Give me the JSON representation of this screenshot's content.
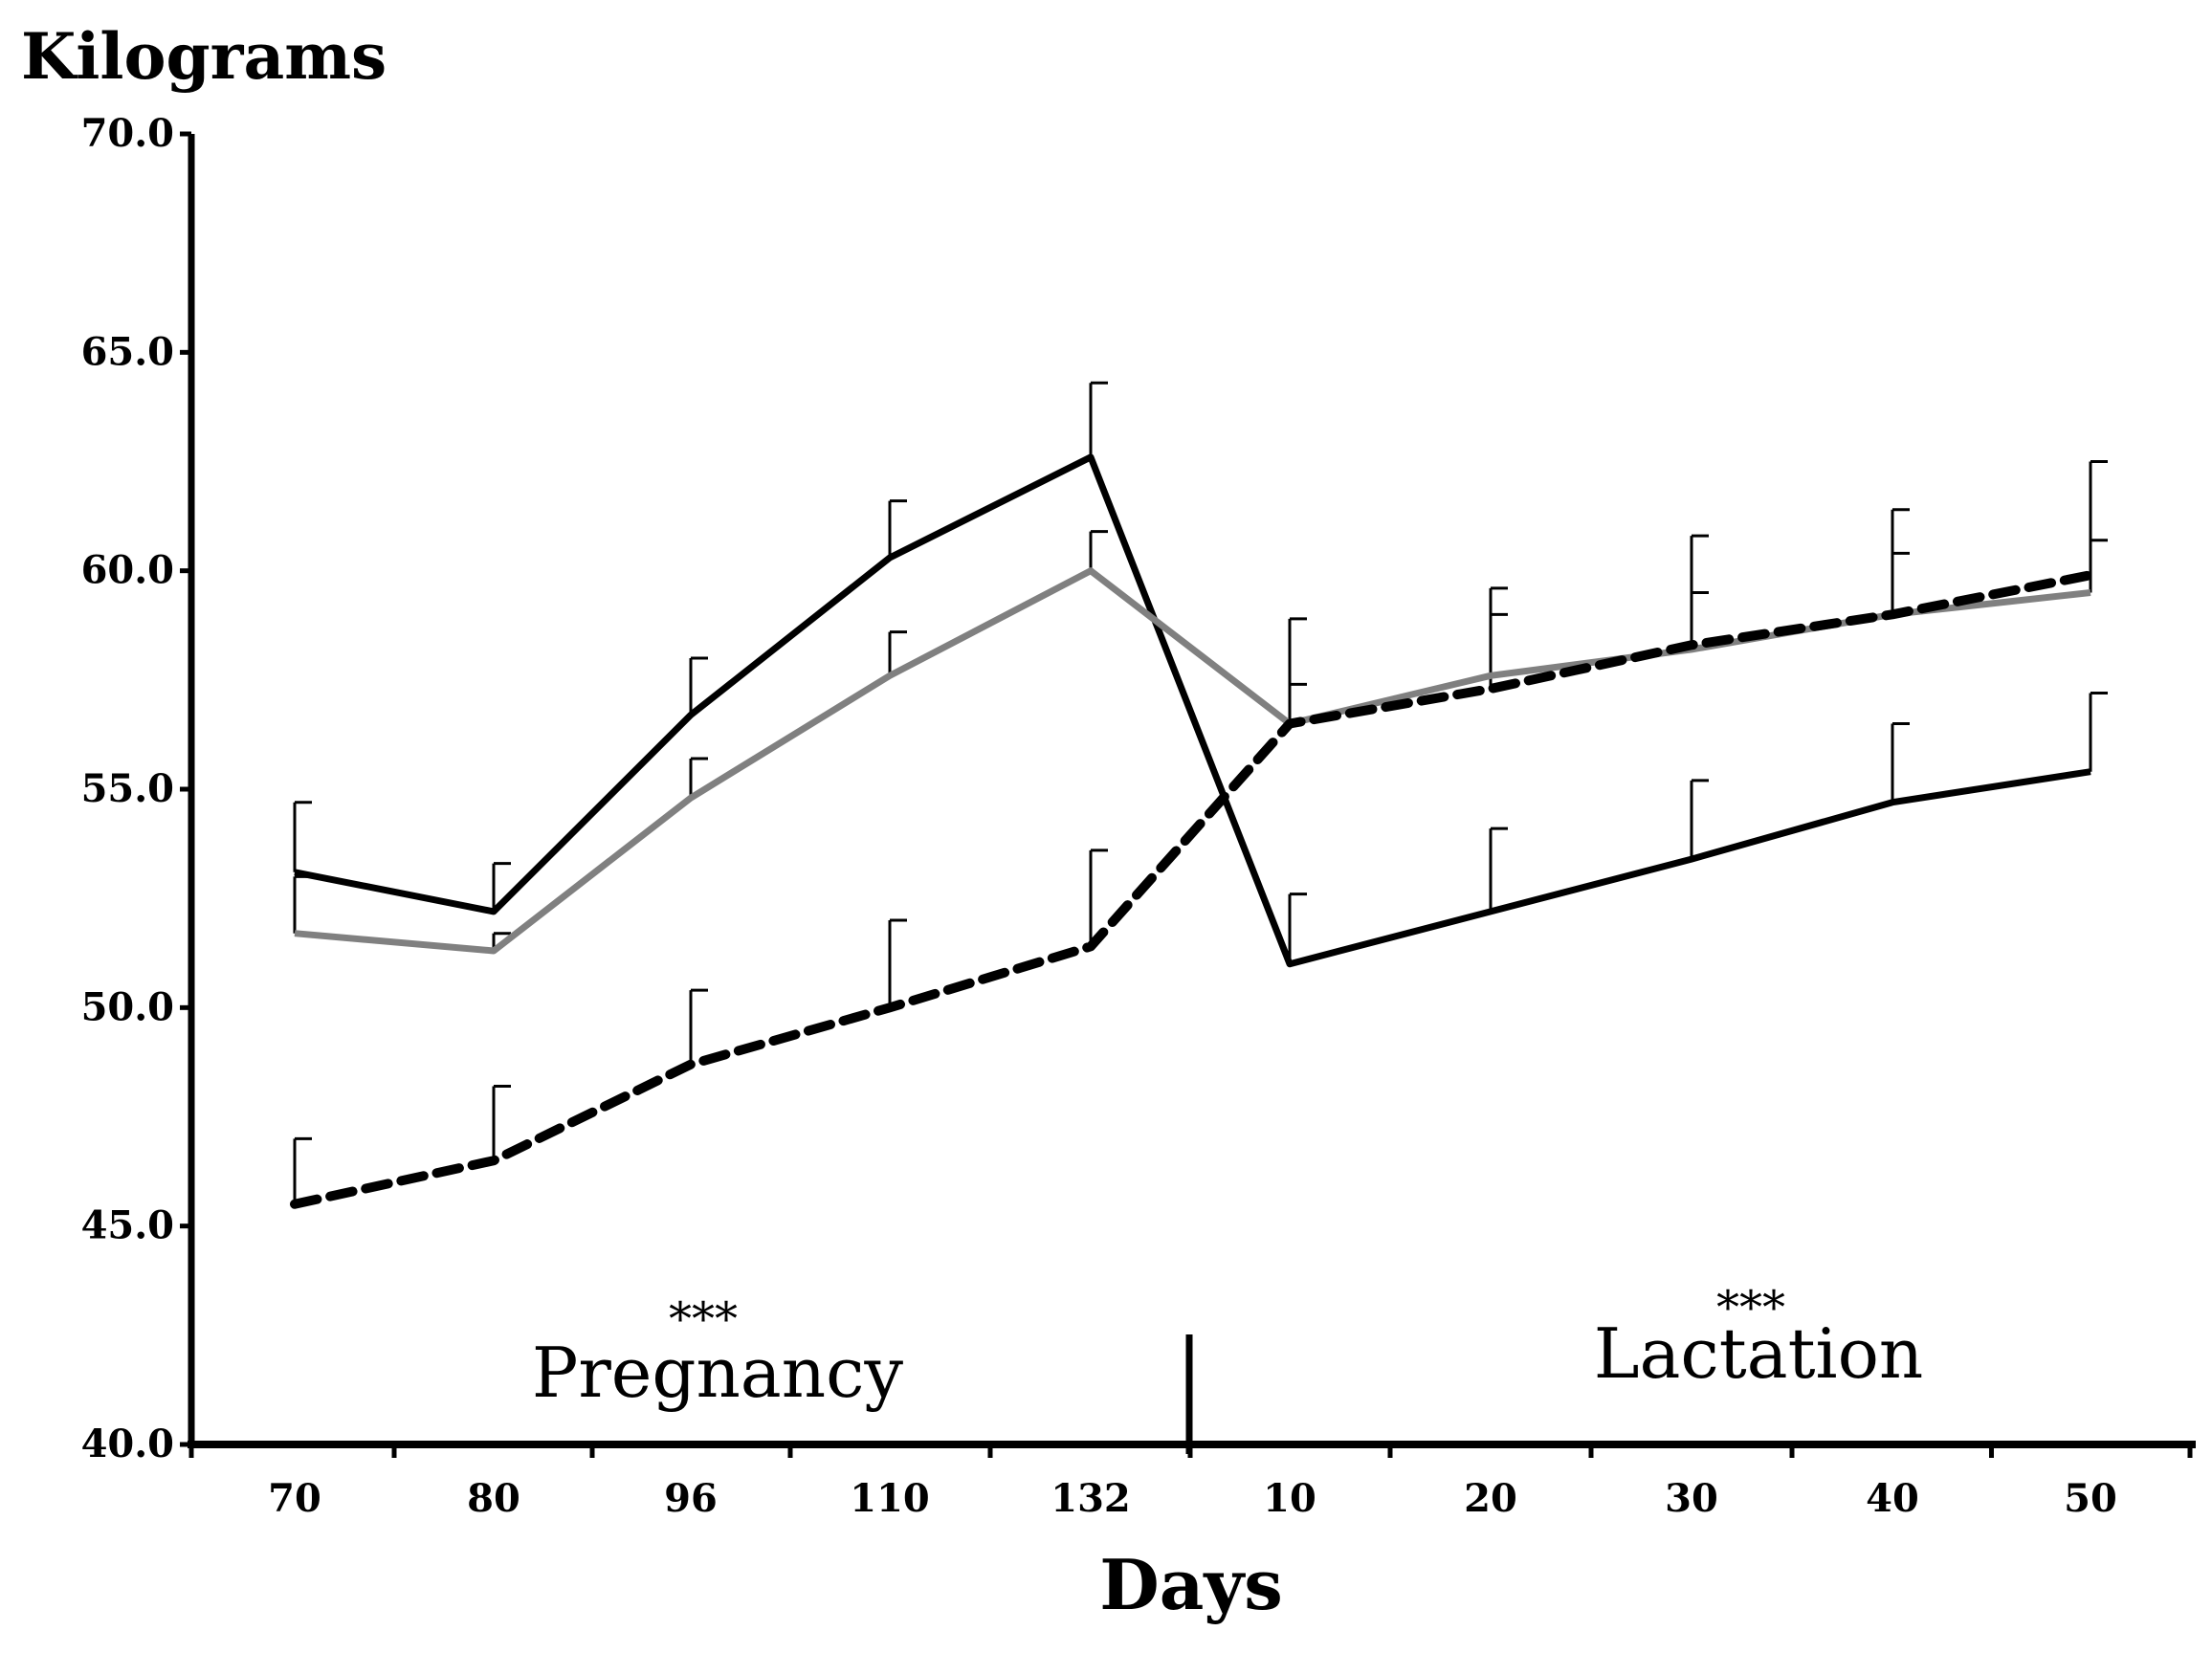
{
  "chart_data": {
    "type": "line",
    "ylabel": "Kilograms",
    "xlabel": "Days",
    "ylim": [
      40,
      70
    ],
    "yticks": [
      "40.0",
      "45.0",
      "50.0",
      "55.0",
      "60.0",
      "65.0",
      "70.0"
    ],
    "categories": [
      "70",
      "80",
      "96",
      "110",
      "132",
      "10",
      "20",
      "30",
      "40",
      "50"
    ],
    "phases": [
      {
        "label": "Pregnancy",
        "significance": "***"
      },
      {
        "label": "Lactation",
        "significance": "***"
      }
    ],
    "series": [
      {
        "name": "black solid",
        "style": "solid",
        "color": "#000000",
        "values": [
          53.1,
          52.2,
          56.7,
          60.3,
          62.6,
          51.0,
          52.2,
          53.4,
          54.7,
          55.4
        ],
        "errors": [
          1.6,
          1.1,
          1.3,
          1.3,
          1.7,
          1.6,
          1.9,
          1.8,
          1.8,
          1.8
        ]
      },
      {
        "name": "grey solid",
        "style": "solid",
        "color": "#808080",
        "values": [
          51.7,
          51.3,
          54.8,
          57.6,
          60.0,
          56.5,
          57.6,
          58.2,
          59.0,
          59.5
        ],
        "errors": [
          1.3,
          0.4,
          0.9,
          1.0,
          0.9,
          0.9,
          1.4,
          1.3,
          1.4,
          1.2
        ]
      },
      {
        "name": "black dashed",
        "style": "dashed",
        "color": "#000000",
        "values": [
          45.5,
          46.5,
          48.7,
          50.0,
          51.4,
          56.5,
          57.3,
          58.3,
          59.0,
          59.9
        ],
        "errors": [
          1.5,
          1.7,
          1.7,
          2.0,
          2.2,
          2.4,
          2.3,
          2.5,
          2.4,
          2.6
        ]
      }
    ]
  }
}
